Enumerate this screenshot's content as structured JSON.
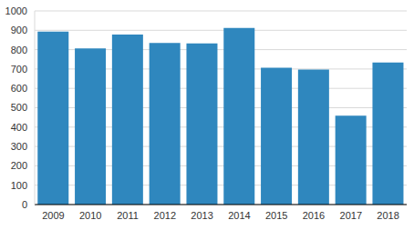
{
  "chart_data": {
    "type": "bar",
    "categories": [
      "2009",
      "2010",
      "2011",
      "2012",
      "2013",
      "2014",
      "2015",
      "2016",
      "2017",
      "2018"
    ],
    "values": [
      893,
      806,
      878,
      835,
      832,
      912,
      706,
      697,
      459,
      733
    ],
    "color": "#2f87be",
    "ylim": [
      0,
      1000
    ],
    "yticks": [
      0,
      100,
      200,
      300,
      400,
      500,
      600,
      700,
      800,
      900,
      1000
    ],
    "grid": true
  }
}
